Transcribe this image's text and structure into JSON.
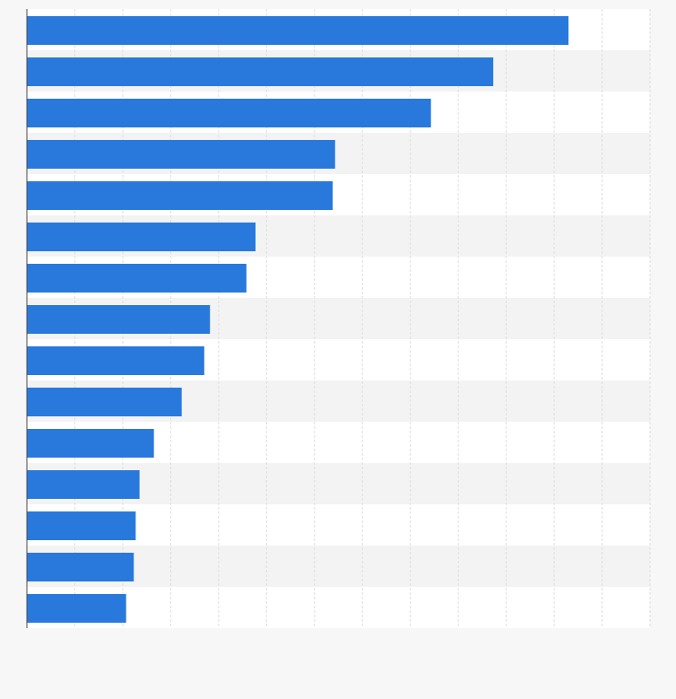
{
  "chart_data": {
    "type": "bar",
    "orientation": "horizontal",
    "title": "",
    "xlabel": "",
    "ylabel": "",
    "categories": [
      "",
      "",
      "",
      "",
      "",
      "",
      "",
      "",
      "",
      "",
      "",
      "",
      "",
      "",
      ""
    ],
    "values": [
      11.3,
      9.73,
      8.43,
      6.43,
      6.38,
      4.77,
      4.58,
      3.82,
      3.7,
      3.23,
      2.65,
      2.35,
      2.27,
      2.23,
      2.07
    ],
    "xlim": [
      0,
      13
    ],
    "grid": true,
    "legend": "none",
    "colors": {
      "bar": "#2979dd",
      "background": "#f7f7f7",
      "band_light": "#ffffff",
      "band_alt": "#f3f3f3",
      "grid": "#dedede",
      "axis": "#4a4a4a"
    }
  }
}
